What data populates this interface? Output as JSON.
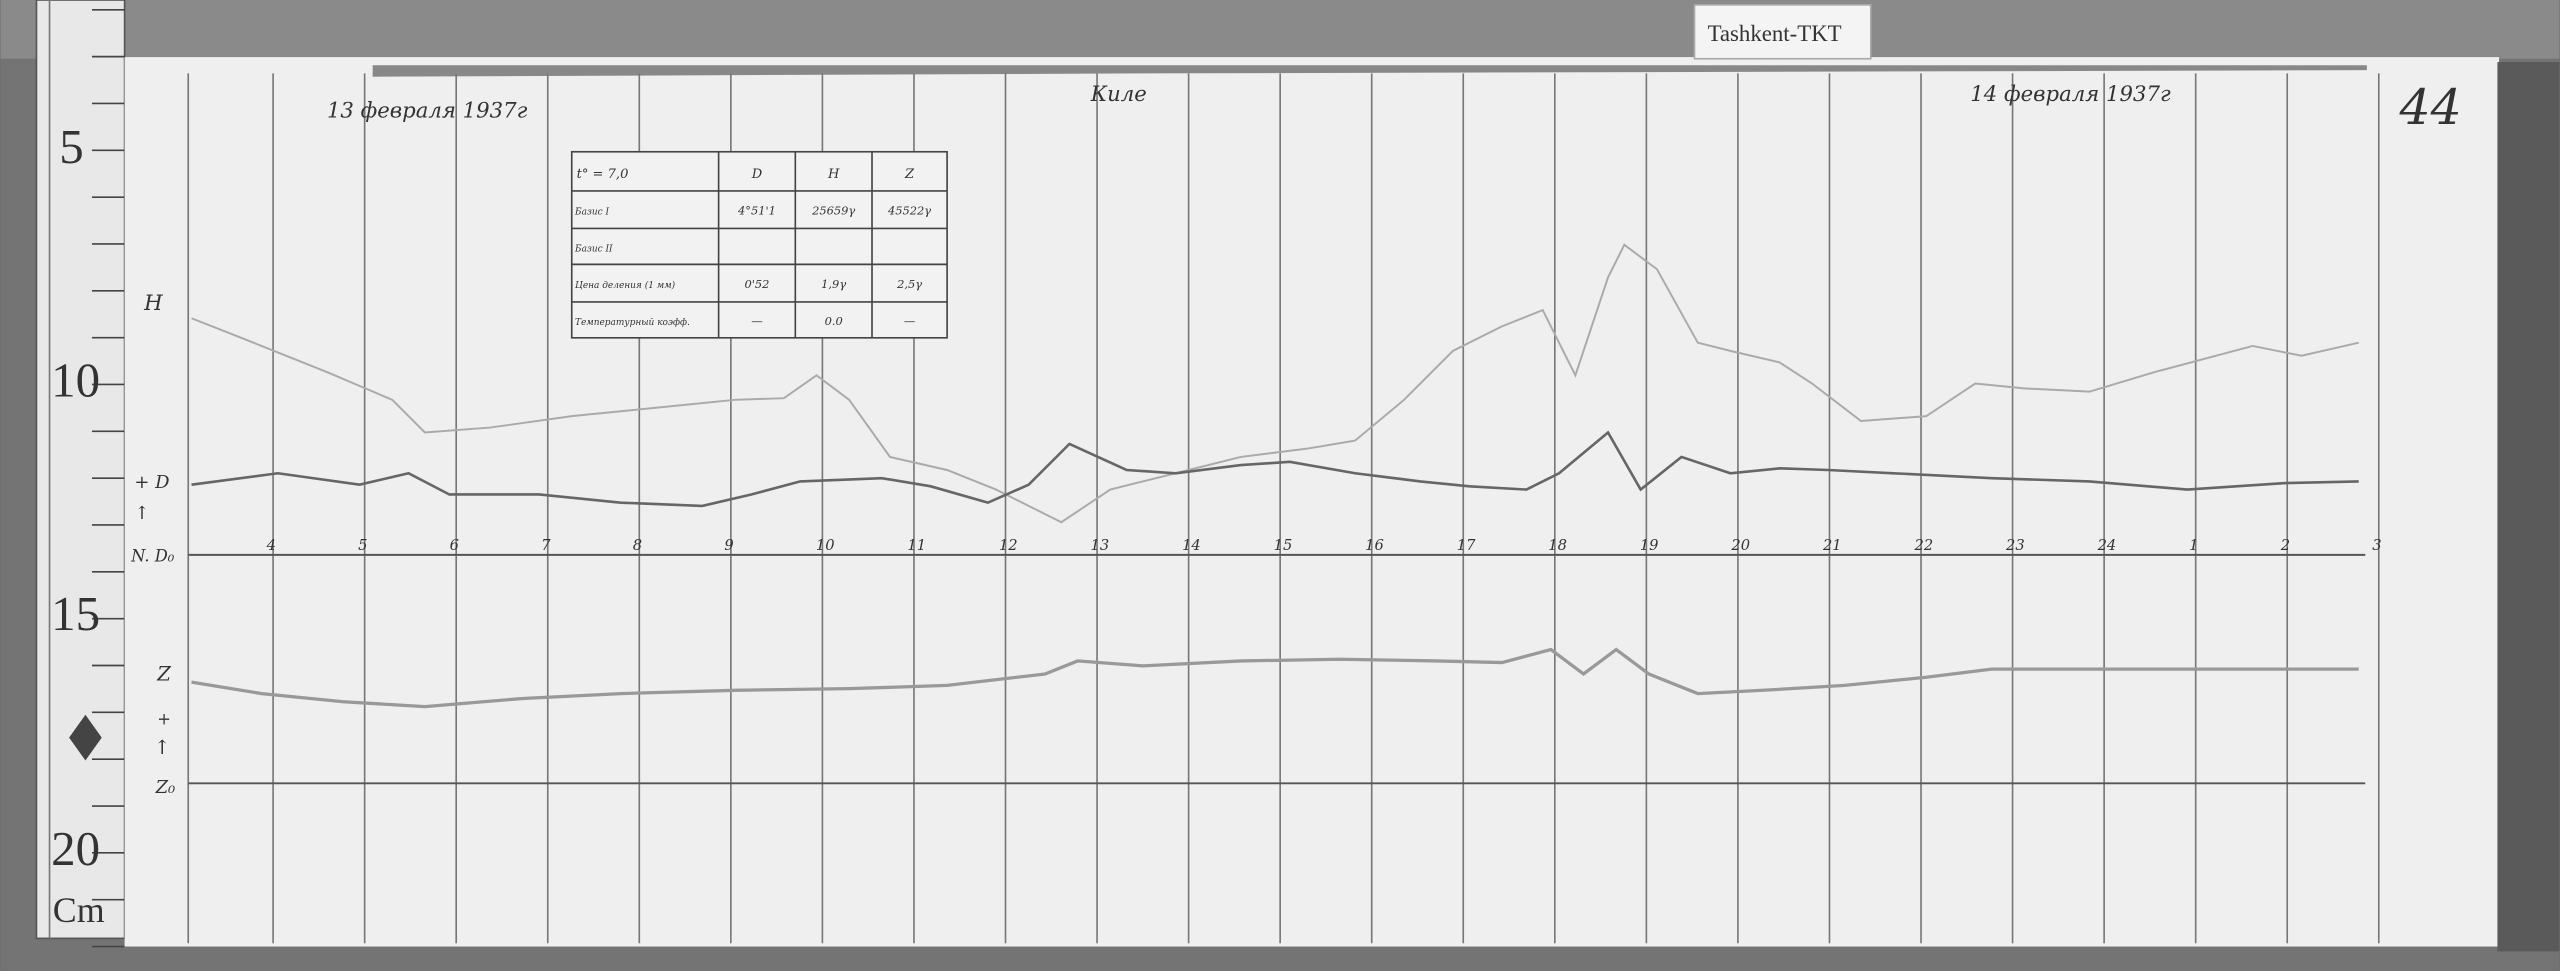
{
  "station_tag": "Tashkent-TKT",
  "sheet_number": "44",
  "header": {
    "date_left": "13 февраля 1937г",
    "date_right": "14 февраля 1937г",
    "observer": "Киле"
  },
  "ruler": {
    "marks": [
      "5",
      "10",
      "15",
      "20"
    ],
    "unit": "Cm"
  },
  "trace_labels": {
    "h": "H",
    "d_plus": "+ D",
    "d_arrow": "↑",
    "d_base": "N. D₀",
    "z": "Z",
    "z_plus": "+",
    "z_arrow": "↑",
    "z_base": "Z₀"
  },
  "hour_labels": [
    "4",
    "5",
    "6",
    "7",
    "8",
    "9",
    "10",
    "11",
    "12",
    "13",
    "14",
    "15",
    "16",
    "17",
    "18",
    "19",
    "20",
    "21",
    "22",
    "23",
    "24",
    "1",
    "2",
    "3"
  ],
  "table": {
    "header": [
      "t° = 7,0",
      "D",
      "H",
      "Z"
    ],
    "rows": [
      [
        "Базис I",
        "4°51'1",
        "25659γ",
        "45522γ"
      ],
      [
        "Базис II",
        "",
        "",
        ""
      ],
      [
        "Цена деления (1 мм)",
        "0'52",
        "1,9γ",
        "2,5γ"
      ],
      [
        "Температурный коэфф.",
        "—",
        "0.0",
        "—"
      ]
    ]
  }
}
